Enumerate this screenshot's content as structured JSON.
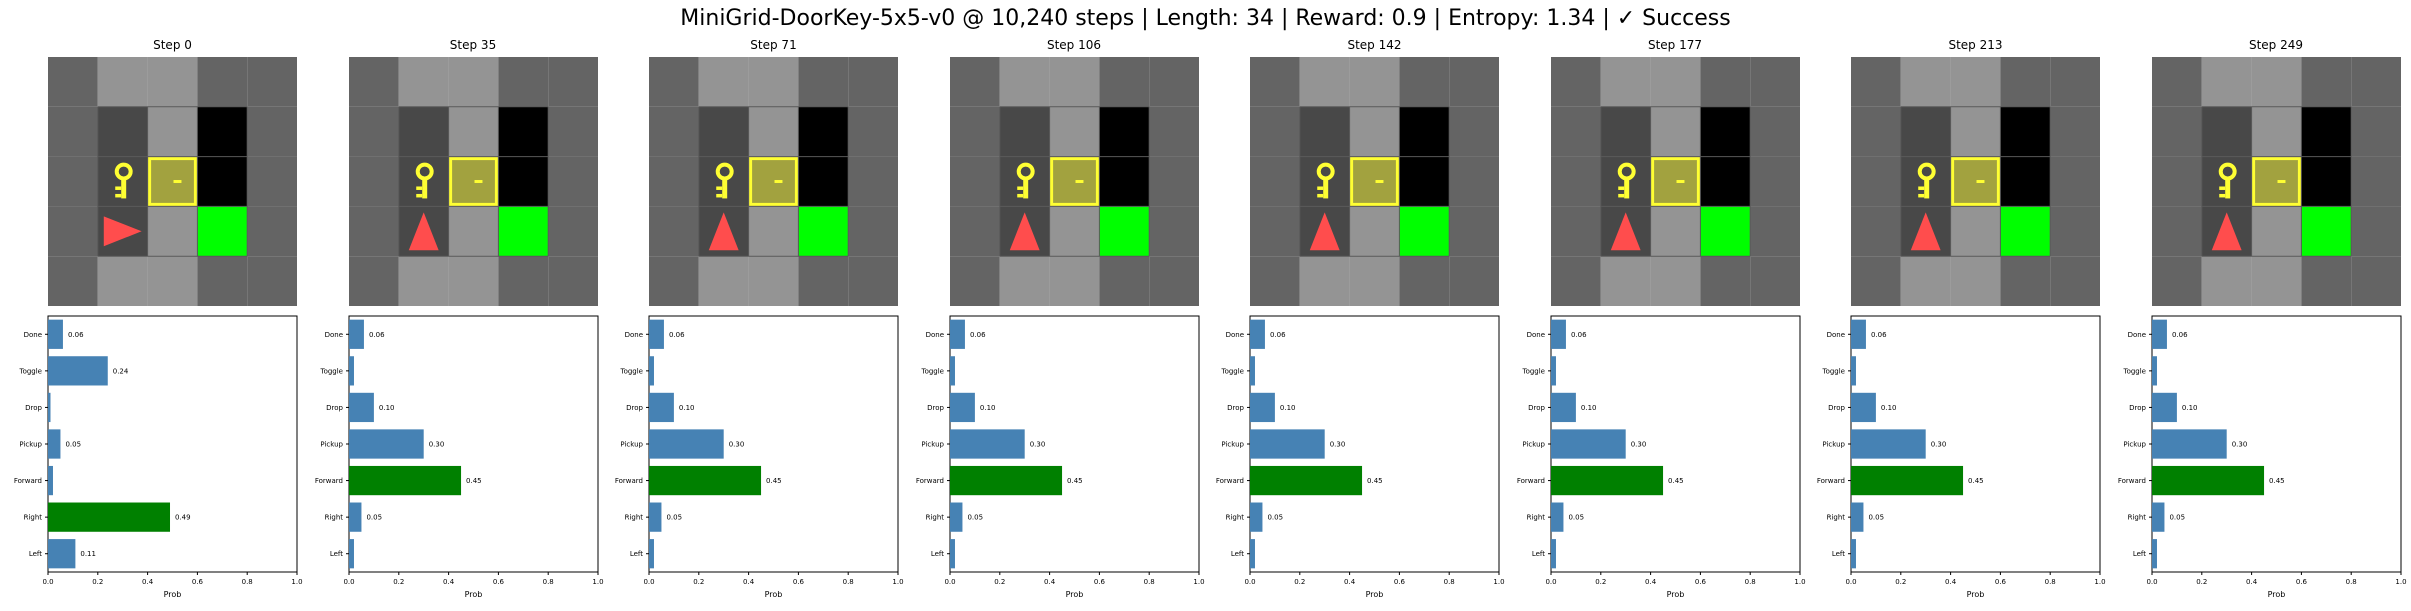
{
  "title": "MiniGrid-DoorKey-5x5-v0 @ 10,240 steps | Length: 34 | Reward: 0.9 | Entropy: 1.34 | ✓ Success",
  "colors": {
    "wall": "#646464",
    "floor": "#949494",
    "unseen": "#000000",
    "obscured_floor": "#484848",
    "grid_line": "#5a5a5a",
    "goal": "#00ff00",
    "key": "#ffff33",
    "door_fill": "#a2a23f",
    "door_border": "#ffff33",
    "agent": "#ff4d4d",
    "bar_default": "#4682b4",
    "bar_selected": "#008000"
  },
  "grid_layout": {
    "notes": "5x5 MiniGrid tiles; row-major from top-left",
    "tiles": [
      [
        "wall",
        "floor",
        "floor",
        "wall",
        "wall"
      ],
      [
        "wall",
        "obscured_floor",
        "floor",
        "unseen",
        "wall"
      ],
      [
        "wall",
        "key",
        "door",
        "unseen",
        "wall"
      ],
      [
        "wall",
        "obscured_floor",
        "floor",
        "goal",
        "wall"
      ],
      [
        "wall",
        "floor",
        "floor",
        "wall",
        "wall"
      ]
    ]
  },
  "chart_data": [
    {
      "type": "bar",
      "title": "Step 0",
      "agent": {
        "row": 3,
        "col": 1,
        "dir": "right"
      },
      "categories": [
        "Left",
        "Right",
        "Forward",
        "Pickup",
        "Drop",
        "Toggle",
        "Done"
      ],
      "values": [
        0.11,
        0.49,
        0.02,
        0.05,
        0.01,
        0.24,
        0.06
      ],
      "labels": [
        "0.11",
        "0.49",
        "",
        "0.05",
        "",
        "0.24",
        "0.06"
      ],
      "selected": "Right",
      "xlabel": "Prob",
      "xlim": [
        0,
        1
      ],
      "xticks": [
        "0.0",
        "0.2",
        "0.4",
        "0.6",
        "0.8",
        "1.0"
      ]
    },
    {
      "type": "bar",
      "title": "Step 35",
      "agent": {
        "row": 3,
        "col": 1,
        "dir": "up"
      },
      "categories": [
        "Left",
        "Right",
        "Forward",
        "Pickup",
        "Drop",
        "Toggle",
        "Done"
      ],
      "values": [
        0.02,
        0.05,
        0.45,
        0.3,
        0.1,
        0.02,
        0.06
      ],
      "labels": [
        "",
        "0.05",
        "0.45",
        "0.30",
        "0.10",
        "",
        "0.06"
      ],
      "selected": "Forward",
      "xlabel": "Prob",
      "xlim": [
        0,
        1
      ],
      "xticks": [
        "0.0",
        "0.2",
        "0.4",
        "0.6",
        "0.8",
        "1.0"
      ]
    },
    {
      "type": "bar",
      "title": "Step 71",
      "agent": {
        "row": 3,
        "col": 1,
        "dir": "up"
      },
      "categories": [
        "Left",
        "Right",
        "Forward",
        "Pickup",
        "Drop",
        "Toggle",
        "Done"
      ],
      "values": [
        0.02,
        0.05,
        0.45,
        0.3,
        0.1,
        0.02,
        0.06
      ],
      "labels": [
        "",
        "0.05",
        "0.45",
        "0.30",
        "0.10",
        "",
        "0.06"
      ],
      "selected": "Forward",
      "xlabel": "Prob",
      "xlim": [
        0,
        1
      ],
      "xticks": [
        "0.0",
        "0.2",
        "0.4",
        "0.6",
        "0.8",
        "1.0"
      ]
    },
    {
      "type": "bar",
      "title": "Step 106",
      "agent": {
        "row": 3,
        "col": 1,
        "dir": "up"
      },
      "categories": [
        "Left",
        "Right",
        "Forward",
        "Pickup",
        "Drop",
        "Toggle",
        "Done"
      ],
      "values": [
        0.02,
        0.05,
        0.45,
        0.3,
        0.1,
        0.02,
        0.06
      ],
      "labels": [
        "",
        "0.05",
        "0.45",
        "0.30",
        "0.10",
        "",
        "0.06"
      ],
      "selected": "Forward",
      "xlabel": "Prob",
      "xlim": [
        0,
        1
      ],
      "xticks": [
        "0.0",
        "0.2",
        "0.4",
        "0.6",
        "0.8",
        "1.0"
      ]
    },
    {
      "type": "bar",
      "title": "Step 142",
      "agent": {
        "row": 3,
        "col": 1,
        "dir": "up"
      },
      "categories": [
        "Left",
        "Right",
        "Forward",
        "Pickup",
        "Drop",
        "Toggle",
        "Done"
      ],
      "values": [
        0.02,
        0.05,
        0.45,
        0.3,
        0.1,
        0.02,
        0.06
      ],
      "labels": [
        "",
        "0.05",
        "0.45",
        "0.30",
        "0.10",
        "",
        "0.06"
      ],
      "selected": "Forward",
      "xlabel": "Prob",
      "xlim": [
        0,
        1
      ],
      "xticks": [
        "0.0",
        "0.2",
        "0.4",
        "0.6",
        "0.8",
        "1.0"
      ]
    },
    {
      "type": "bar",
      "title": "Step 177",
      "agent": {
        "row": 3,
        "col": 1,
        "dir": "up"
      },
      "categories": [
        "Left",
        "Right",
        "Forward",
        "Pickup",
        "Drop",
        "Toggle",
        "Done"
      ],
      "values": [
        0.02,
        0.05,
        0.45,
        0.3,
        0.1,
        0.02,
        0.06
      ],
      "labels": [
        "",
        "0.05",
        "0.45",
        "0.30",
        "0.10",
        "",
        "0.06"
      ],
      "selected": "Forward",
      "xlabel": "Prob",
      "xlim": [
        0,
        1
      ],
      "xticks": [
        "0.0",
        "0.2",
        "0.4",
        "0.6",
        "0.8",
        "1.0"
      ]
    },
    {
      "type": "bar",
      "title": "Step 213",
      "agent": {
        "row": 3,
        "col": 1,
        "dir": "up"
      },
      "categories": [
        "Left",
        "Right",
        "Forward",
        "Pickup",
        "Drop",
        "Toggle",
        "Done"
      ],
      "values": [
        0.02,
        0.05,
        0.45,
        0.3,
        0.1,
        0.02,
        0.06
      ],
      "labels": [
        "",
        "0.05",
        "0.45",
        "0.30",
        "0.10",
        "",
        "0.06"
      ],
      "selected": "Forward",
      "xlabel": "Prob",
      "xlim": [
        0,
        1
      ],
      "xticks": [
        "0.0",
        "0.2",
        "0.4",
        "0.6",
        "0.8",
        "1.0"
      ]
    },
    {
      "type": "bar",
      "title": "Step 249",
      "agent": {
        "row": 3,
        "col": 1,
        "dir": "up"
      },
      "categories": [
        "Left",
        "Right",
        "Forward",
        "Pickup",
        "Drop",
        "Toggle",
        "Done"
      ],
      "values": [
        0.02,
        0.05,
        0.45,
        0.3,
        0.1,
        0.02,
        0.06
      ],
      "labels": [
        "",
        "0.05",
        "0.45",
        "0.30",
        "0.10",
        "",
        "0.06"
      ],
      "selected": "Forward",
      "xlabel": "Prob",
      "xlim": [
        0,
        1
      ],
      "xticks": [
        "0.0",
        "0.2",
        "0.4",
        "0.6",
        "0.8",
        "1.0"
      ]
    }
  ]
}
